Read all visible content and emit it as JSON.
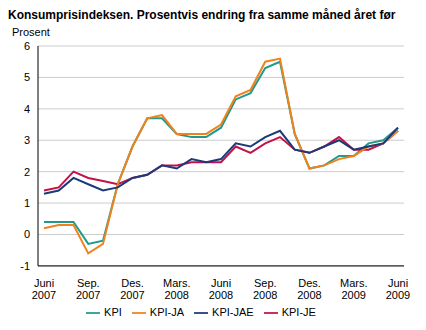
{
  "chart_data": {
    "type": "line",
    "title": "Konsumprisindeksen. Prosentvis endring fra samme måned året før",
    "y_label": "Prosent",
    "categories": [
      "Juni 2007",
      null,
      null,
      "Sep. 2007",
      null,
      null,
      "Des. 2007",
      null,
      null,
      "Mars. 2008",
      null,
      null,
      "Juni 2008",
      null,
      null,
      "Sep. 2008",
      null,
      null,
      "Des. 2008",
      null,
      null,
      "Mars. 2009",
      null,
      null,
      "Juni 2009"
    ],
    "series": [
      {
        "name": "KPI",
        "color": "#1f9a8c",
        "values": [
          0.4,
          0.4,
          0.4,
          -0.3,
          -0.2,
          1.6,
          2.8,
          3.7,
          3.7,
          3.2,
          3.1,
          3.1,
          3.4,
          4.3,
          4.5,
          5.3,
          5.5,
          3.2,
          2.1,
          2.2,
          2.5,
          2.5,
          2.9,
          3.0,
          3.4
        ]
      },
      {
        "name": "KPI-JE",
        "color": "#c3124a",
        "values": [
          1.4,
          1.5,
          2.0,
          1.8,
          1.7,
          1.6,
          1.8,
          1.9,
          2.2,
          2.2,
          2.3,
          2.3,
          2.3,
          2.8,
          2.6,
          2.9,
          3.1,
          2.7,
          2.6,
          2.8,
          3.1,
          2.7,
          2.7,
          2.9,
          3.3
        ]
      },
      {
        "name": "KPI-JA",
        "color": "#f0821e",
        "values": [
          0.2,
          0.3,
          0.3,
          -0.6,
          -0.3,
          1.6,
          2.8,
          3.7,
          3.8,
          3.2,
          3.2,
          3.2,
          3.5,
          4.4,
          4.6,
          5.5,
          5.6,
          3.2,
          2.1,
          2.2,
          2.4,
          2.5,
          2.8,
          2.9,
          3.3
        ]
      },
      {
        "name": "KPI-JAE",
        "color": "#1c3a78",
        "values": [
          1.3,
          1.4,
          1.8,
          1.6,
          1.4,
          1.5,
          1.8,
          1.9,
          2.2,
          2.1,
          2.4,
          2.3,
          2.4,
          2.9,
          2.8,
          3.1,
          3.3,
          2.7,
          2.6,
          2.8,
          3.0,
          2.7,
          2.8,
          2.9,
          3.4
        ]
      }
    ],
    "ylim": [
      -1,
      6
    ],
    "yticks": [
      -1,
      0,
      1,
      2,
      3,
      4,
      5,
      6
    ],
    "grid": true,
    "legend": "bottom"
  }
}
